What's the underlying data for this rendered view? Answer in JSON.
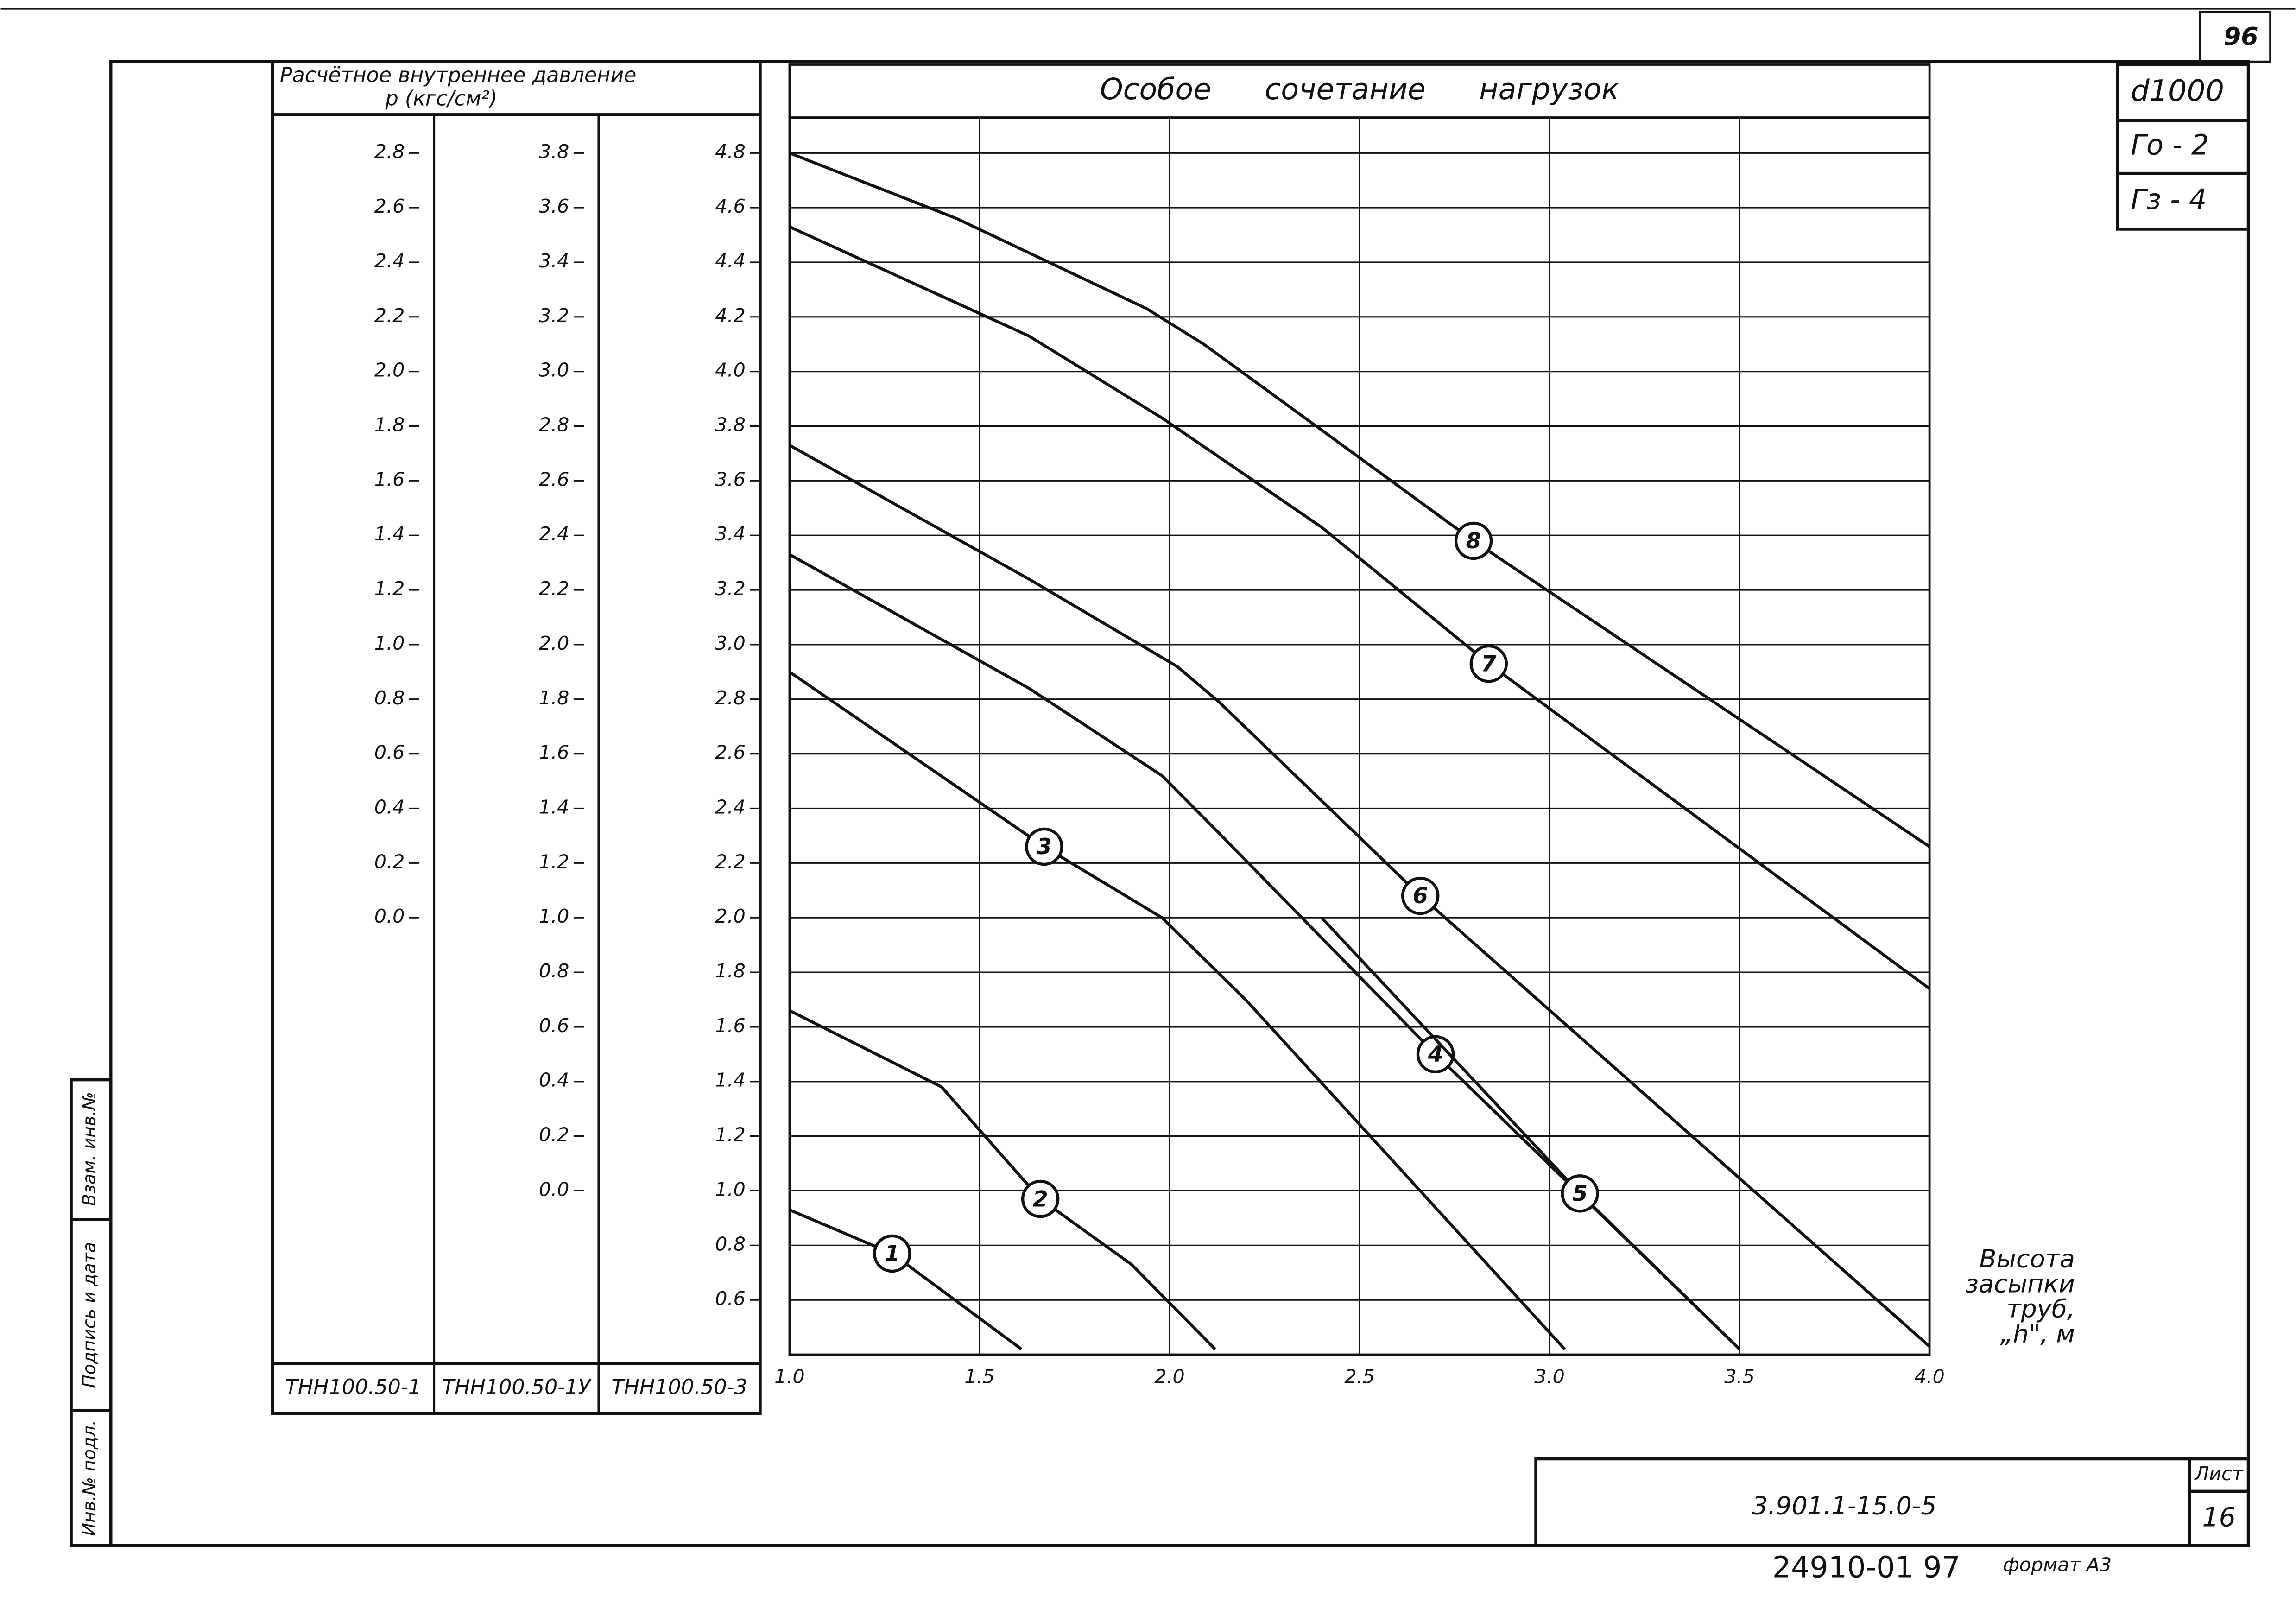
{
  "chart_data": {
    "type": "line",
    "title": "Особое сочетание нагрузок",
    "pressure_label": "Расчётное внутреннее давление",
    "pressure_unit": "p (кгс/см²)",
    "xlabel": [
      "Высота",
      "засыпки",
      "труб,",
      "„h\", м"
    ],
    "xlim": [
      1,
      4
    ],
    "xticks": [
      {
        "value": 1,
        "label": "1.0"
      },
      1.5,
      {
        "value": 2,
        "label": "2.0"
      },
      2.5,
      {
        "value": 3,
        "label": "3.0"
      },
      3.5,
      {
        "value": 4,
        "label": "4.0"
      }
    ],
    "ylim": [
      0.4,
      4.93
    ],
    "y_scale_name": "ТНН100.50-3",
    "yticks": [
      0.6,
      0.8,
      {
        "value": 1,
        "label": "1.0"
      },
      1.2,
      1.4,
      1.6,
      1.8,
      {
        "value": 2,
        "label": "2.0"
      },
      2.2,
      2.4,
      2.6,
      2.8,
      {
        "value": 3,
        "label": "3.0"
      },
      3.2,
      3.4,
      3.6,
      3.8,
      {
        "value": 4,
        "label": "4.0"
      },
      4.2,
      4.4,
      4.6,
      4.8
    ],
    "grid": true,
    "pressure_scales": [
      {
        "name": "ТНН100.50-1",
        "ylim": [
          -1.6,
          2.93
        ],
        "ticks": [
          {
            "value": 0,
            "label": "0.0"
          },
          0.2,
          0.4,
          0.6,
          0.8,
          {
            "value": 1,
            "label": "1.0"
          },
          1.2,
          1.4,
          1.6,
          1.8,
          {
            "value": 2,
            "label": "2.0"
          },
          2.2,
          2.4,
          2.6,
          2.8
        ]
      },
      {
        "name": "ТНН100.50-1У",
        "ylim": [
          -0.6,
          3.93
        ],
        "ticks": [
          {
            "value": 0,
            "label": "0.0"
          },
          0.2,
          0.4,
          0.6,
          0.8,
          {
            "value": 1,
            "label": "1.0"
          },
          1.2,
          1.4,
          1.6,
          1.8,
          {
            "value": 2,
            "label": "2.0"
          },
          2.2,
          2.4,
          2.6,
          2.8,
          {
            "value": 3,
            "label": "3.0"
          },
          3.2,
          3.4,
          3.6,
          3.8
        ]
      }
    ],
    "series": [
      {
        "name": "1",
        "color": "#000000",
        "x": [
          1.0,
          1.27,
          1.61
        ],
        "values": [
          0.93,
          0.77,
          0.42
        ]
      },
      {
        "name": "2",
        "color": "#000000",
        "x": [
          1.0,
          1.4,
          1.66,
          1.9,
          2.12
        ],
        "values": [
          1.66,
          1.38,
          0.97,
          0.73,
          0.42
        ]
      },
      {
        "name": "3",
        "color": "#000000",
        "x": [
          1.0,
          1.67,
          1.98,
          2.2,
          3.04
        ],
        "values": [
          2.9,
          2.26,
          2.0,
          1.7,
          0.42
        ]
      },
      {
        "name": "4",
        "color": "#000000",
        "x": [
          1.0,
          1.63,
          1.98,
          2.13,
          2.7,
          3.5
        ],
        "values": [
          3.33,
          2.84,
          2.52,
          2.31,
          1.5,
          0.42
        ]
      },
      {
        "name": "5",
        "color": "#000000",
        "x": [
          2.4,
          3.08,
          3.5
        ],
        "values": [
          2.0,
          0.99,
          0.42
        ]
      },
      {
        "name": "6",
        "color": "#000000",
        "x": [
          1.0,
          1.63,
          2.02,
          2.13,
          2.66,
          4.0
        ],
        "values": [
          3.73,
          3.24,
          2.92,
          2.79,
          2.08,
          0.43
        ]
      },
      {
        "name": "7",
        "color": "#000000",
        "x": [
          1.0,
          1.63,
          1.98,
          2.4,
          2.84,
          4.0
        ],
        "values": [
          4.53,
          4.13,
          3.83,
          3.43,
          2.93,
          1.74
        ]
      },
      {
        "name": "8",
        "color": "#000000",
        "x": [
          1.0,
          1.44,
          1.94,
          2.09,
          2.8,
          4.0
        ],
        "values": [
          4.8,
          4.56,
          4.23,
          4.1,
          3.38,
          2.26
        ]
      }
    ]
  },
  "stamp": {
    "page": "96",
    "diameter": "d1000",
    "g0": "Го - 2",
    "g3": "Гз - 4",
    "code": "3.901.1-15.0-5",
    "sheet_label": "Лист",
    "sheet": "16",
    "archive": "24910-01 97",
    "format": "формат А3",
    "side": [
      "Инв.№ подл.",
      "Подпись и дата",
      "Взам. инв.№"
    ]
  }
}
